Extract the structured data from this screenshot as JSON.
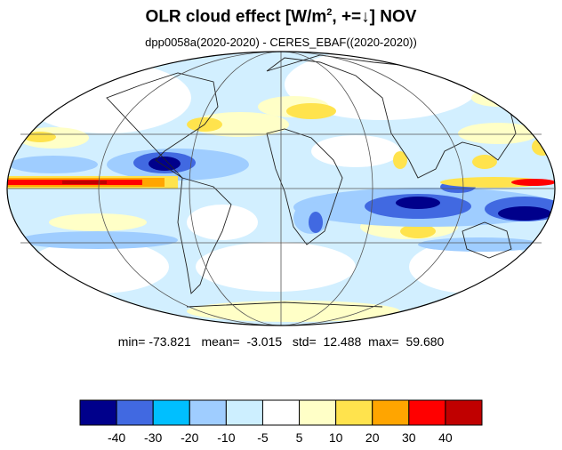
{
  "title": {
    "main": "OLR cloud effect [W/m",
    "sup": "2",
    "rest": ", +=↓]  NOV"
  },
  "subtitle": "dpp0058a(2020-2020) - CERES_EBAF((2020-2020))",
  "stats": {
    "min_label": "min=",
    "min": "-73.821",
    "mean_label": "mean=",
    "mean": "-3.015",
    "std_label": "std=",
    "std": "12.488",
    "max_label": "max=",
    "max": "59.680"
  },
  "colorbar": {
    "colors": [
      "#00008b",
      "#4169e1",
      "#00bfff",
      "#9fcdff",
      "#cdefff",
      "#ffffff",
      "#ffffc7",
      "#ffe34d",
      "#ffa500",
      "#ff0000",
      "#c00000"
    ],
    "tick_labels": [
      "-40",
      "-30",
      "-20",
      "-10",
      "-5",
      "5",
      "10",
      "20",
      "30",
      "40"
    ]
  },
  "chart_data": {
    "type": "heatmap",
    "projection": "mollweide",
    "center_longitude": 0,
    "contour_levels": [
      -40,
      -30,
      -20,
      -10,
      -5,
      5,
      10,
      20,
      30,
      40
    ],
    "grid_lines": true
  }
}
